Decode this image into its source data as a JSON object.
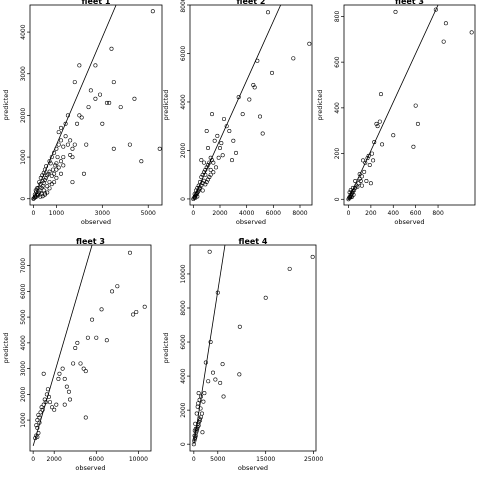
{
  "chart_data": [
    {
      "type": "scatter",
      "title": "fleet 1",
      "xlabel": "observed",
      "ylabel": "predicted",
      "xlim": [
        -150,
        5600
      ],
      "ylim": [
        -150,
        4650
      ],
      "xticks": [
        0,
        1000,
        3000,
        5000
      ],
      "yticks": [
        0,
        1000,
        2000,
        3000,
        4000
      ],
      "line": [
        [
          0,
          0
        ],
        [
          3600,
          4650
        ]
      ],
      "points": [
        [
          0,
          0
        ],
        [
          20,
          10
        ],
        [
          50,
          30
        ],
        [
          80,
          60
        ],
        [
          100,
          40
        ],
        [
          150,
          90
        ],
        [
          180,
          120
        ],
        [
          200,
          80
        ],
        [
          250,
          150
        ],
        [
          300,
          200
        ],
        [
          350,
          260
        ],
        [
          400,
          300
        ],
        [
          60,
          100
        ],
        [
          120,
          160
        ],
        [
          200,
          260
        ],
        [
          300,
          350
        ],
        [
          400,
          420
        ],
        [
          450,
          380
        ],
        [
          500,
          450
        ],
        [
          550,
          500
        ],
        [
          600,
          560
        ],
        [
          650,
          600
        ],
        [
          700,
          650
        ],
        [
          250,
          400
        ],
        [
          320,
          500
        ],
        [
          380,
          560
        ],
        [
          450,
          620
        ],
        [
          500,
          700
        ],
        [
          550,
          780
        ],
        [
          150,
          250
        ],
        [
          100,
          200
        ],
        [
          350,
          120
        ],
        [
          450,
          200
        ],
        [
          500,
          130
        ],
        [
          600,
          300
        ],
        [
          700,
          250
        ],
        [
          800,
          350
        ],
        [
          900,
          400
        ],
        [
          1000,
          500
        ],
        [
          700,
          900
        ],
        [
          800,
          1000
        ],
        [
          900,
          1100
        ],
        [
          750,
          850
        ],
        [
          850,
          700
        ],
        [
          950,
          800
        ],
        [
          1000,
          1200
        ],
        [
          1100,
          1300
        ],
        [
          1200,
          1400
        ],
        [
          1300,
          1250
        ],
        [
          1400,
          1500
        ],
        [
          1050,
          1000
        ],
        [
          1100,
          750
        ],
        [
          1200,
          900
        ],
        [
          1300,
          1000
        ],
        [
          1000,
          850
        ],
        [
          1100,
          1600
        ],
        [
          1200,
          1700
        ],
        [
          1400,
          1800
        ],
        [
          1500,
          1300
        ],
        [
          1600,
          1400
        ],
        [
          1700,
          1200
        ],
        [
          1800,
          1300
        ],
        [
          1900,
          1800
        ],
        [
          2000,
          2000
        ],
        [
          2100,
          1950
        ],
        [
          1500,
          2000
        ],
        [
          1600,
          1050
        ],
        [
          1200,
          600
        ],
        [
          1000,
          700
        ],
        [
          900,
          600
        ],
        [
          800,
          550
        ],
        [
          700,
          400
        ],
        [
          600,
          150
        ],
        [
          500,
          100
        ],
        [
          400,
          60
        ],
        [
          300,
          50
        ],
        [
          2200,
          600
        ],
        [
          2300,
          1300
        ],
        [
          2400,
          2200
        ],
        [
          2500,
          2600
        ],
        [
          2700,
          2400
        ],
        [
          2900,
          2500
        ],
        [
          3000,
          1800
        ],
        [
          3200,
          2300
        ],
        [
          3300,
          2300
        ],
        [
          3400,
          3600
        ],
        [
          3500,
          2800
        ],
        [
          3500,
          1200
        ],
        [
          3800,
          2200
        ],
        [
          4200,
          1300
        ],
        [
          4400,
          2400
        ],
        [
          4700,
          900
        ],
        [
          5200,
          4500
        ],
        [
          5500,
          1200
        ],
        [
          2700,
          3200
        ],
        [
          2000,
          3200
        ],
        [
          1800,
          2800
        ],
        [
          1700,
          1000
        ],
        [
          1300,
          800
        ],
        [
          1700,
          400
        ]
      ]
    },
    {
      "type": "scatter",
      "title": "fleet 2",
      "xlabel": "observed",
      "ylabel": "predicted",
      "xlim": [
        -250,
        8900
      ],
      "ylim": [
        -250,
        8000
      ],
      "xticks": [
        0,
        2000,
        4000,
        6000,
        8000
      ],
      "yticks": [
        0,
        2000,
        4000,
        6000,
        8000
      ],
      "line": [
        [
          0,
          0
        ],
        [
          6550,
          8000
        ]
      ],
      "points": [
        [
          0,
          0
        ],
        [
          50,
          40
        ],
        [
          100,
          80
        ],
        [
          150,
          120
        ],
        [
          200,
          180
        ],
        [
          250,
          200
        ],
        [
          300,
          260
        ],
        [
          350,
          300
        ],
        [
          400,
          350
        ],
        [
          450,
          420
        ],
        [
          500,
          460
        ],
        [
          600,
          550
        ],
        [
          700,
          650
        ],
        [
          800,
          750
        ],
        [
          100,
          200
        ],
        [
          200,
          350
        ],
        [
          300,
          450
        ],
        [
          400,
          550
        ],
        [
          500,
          700
        ],
        [
          600,
          900
        ],
        [
          700,
          1000
        ],
        [
          800,
          1100
        ],
        [
          900,
          1200
        ],
        [
          1000,
          1300
        ],
        [
          1100,
          1400
        ],
        [
          1200,
          1500
        ],
        [
          1300,
          1200
        ],
        [
          1400,
          1600
        ],
        [
          1500,
          1500
        ],
        [
          1000,
          700
        ],
        [
          900,
          600
        ],
        [
          1100,
          800
        ],
        [
          1200,
          900
        ],
        [
          1300,
          1000
        ],
        [
          1500,
          1100
        ],
        [
          1700,
          1300
        ],
        [
          1900,
          1700
        ],
        [
          2000,
          2100
        ],
        [
          2100,
          2300
        ],
        [
          2200,
          1800
        ],
        [
          1600,
          2400
        ],
        [
          1800,
          2600
        ],
        [
          1000,
          2800
        ],
        [
          2300,
          3300
        ],
        [
          2500,
          3000
        ],
        [
          2700,
          2800
        ],
        [
          2900,
          1600
        ],
        [
          3000,
          2400
        ],
        [
          3200,
          1900
        ],
        [
          3400,
          4200
        ],
        [
          3700,
          3500
        ],
        [
          4200,
          4100
        ],
        [
          4500,
          4700
        ],
        [
          4600,
          4600
        ],
        [
          4800,
          5700
        ],
        [
          5000,
          3400
        ],
        [
          5200,
          2700
        ],
        [
          5600,
          7700
        ],
        [
          5900,
          5200
        ],
        [
          7500,
          5800
        ],
        [
          8700,
          6400
        ],
        [
          600,
          1600
        ],
        [
          800,
          1500
        ],
        [
          900,
          1000
        ],
        [
          700,
          350
        ],
        [
          300,
          100
        ],
        [
          150,
          50
        ],
        [
          1400,
          3500
        ],
        [
          1300,
          1700
        ],
        [
          1100,
          2100
        ]
      ]
    },
    {
      "type": "scatter",
      "title": "fleet 3",
      "xlabel": "observed",
      "ylabel": "predicted",
      "xlim": [
        -40,
        1130
      ],
      "ylim": [
        -25,
        850
      ],
      "xticks": [
        0,
        200,
        400,
        600,
        800
      ],
      "yticks": [
        0,
        200,
        400,
        600,
        800
      ],
      "line": [
        [
          0,
          0
        ],
        [
          800,
          850
        ]
      ],
      "points": [
        [
          0,
          0
        ],
        [
          5,
          5
        ],
        [
          10,
          10
        ],
        [
          15,
          8
        ],
        [
          20,
          20
        ],
        [
          25,
          15
        ],
        [
          30,
          25
        ],
        [
          35,
          30
        ],
        [
          40,
          35
        ],
        [
          45,
          20
        ],
        [
          50,
          40
        ],
        [
          60,
          50
        ],
        [
          70,
          60
        ],
        [
          80,
          55
        ],
        [
          90,
          70
        ],
        [
          100,
          90
        ],
        [
          110,
          80
        ],
        [
          120,
          100
        ],
        [
          130,
          170
        ],
        [
          150,
          160
        ],
        [
          170,
          180
        ],
        [
          190,
          150
        ],
        [
          210,
          200
        ],
        [
          230,
          250
        ],
        [
          250,
          330
        ],
        [
          260,
          320
        ],
        [
          280,
          340
        ],
        [
          290,
          460
        ],
        [
          300,
          240
        ],
        [
          400,
          280
        ],
        [
          420,
          820
        ],
        [
          580,
          230
        ],
        [
          600,
          410
        ],
        [
          620,
          330
        ],
        [
          780,
          830
        ],
        [
          850,
          690
        ],
        [
          870,
          770
        ],
        [
          1100,
          730
        ],
        [
          10,
          30
        ],
        [
          20,
          40
        ],
        [
          30,
          10
        ],
        [
          40,
          50
        ],
        [
          100,
          110
        ],
        [
          120,
          60
        ],
        [
          140,
          120
        ],
        [
          160,
          80
        ],
        [
          180,
          190
        ],
        [
          200,
          70
        ],
        [
          220,
          170
        ],
        [
          60,
          80
        ]
      ]
    },
    {
      "type": "scatter",
      "title": "fleet 3",
      "xlabel": "observed",
      "ylabel": "predicted",
      "xlim": [
        -300,
        11200
      ],
      "ylim": [
        -200,
        7800
      ],
      "xticks": [
        0,
        2000,
        6000,
        10000
      ],
      "yticks": [
        1000,
        2000,
        3000,
        4000,
        5000,
        6000,
        7000
      ],
      "line": [
        [
          0,
          0
        ],
        [
          5600,
          7800
        ]
      ],
      "points": [
        [
          200,
          300
        ],
        [
          300,
          400
        ],
        [
          400,
          350
        ],
        [
          500,
          500
        ],
        [
          300,
          800
        ],
        [
          400,
          1000
        ],
        [
          500,
          1200
        ],
        [
          600,
          1100
        ],
        [
          700,
          1300
        ],
        [
          800,
          1500
        ],
        [
          900,
          1400
        ],
        [
          1000,
          1600
        ],
        [
          1100,
          1800
        ],
        [
          1200,
          1700
        ],
        [
          1300,
          2000
        ],
        [
          1400,
          2200
        ],
        [
          1500,
          1900
        ],
        [
          1600,
          1700
        ],
        [
          1800,
          1500
        ],
        [
          2000,
          1400
        ],
        [
          2200,
          1600
        ],
        [
          2500,
          2800
        ],
        [
          2800,
          3000
        ],
        [
          3000,
          2600
        ],
        [
          3200,
          2300
        ],
        [
          3400,
          2100
        ],
        [
          3500,
          1800
        ],
        [
          3800,
          3200
        ],
        [
          4000,
          3800
        ],
        [
          4200,
          4000
        ],
        [
          4500,
          3200
        ],
        [
          4800,
          3000
        ],
        [
          5000,
          2900
        ],
        [
          5200,
          4200
        ],
        [
          5600,
          4900
        ],
        [
          6000,
          4200
        ],
        [
          6500,
          5300
        ],
        [
          7000,
          4100
        ],
        [
          7500,
          6000
        ],
        [
          8000,
          6200
        ],
        [
          9200,
          7500
        ],
        [
          9500,
          5100
        ],
        [
          9800,
          5200
        ],
        [
          10600,
          5400
        ],
        [
          5000,
          1100
        ],
        [
          3000,
          1600
        ],
        [
          2400,
          2600
        ],
        [
          1000,
          2800
        ],
        [
          600,
          900
        ],
        [
          400,
          700
        ]
      ]
    },
    {
      "type": "scatter",
      "title": "fleet 4",
      "xlabel": "observed",
      "ylabel": "predicted",
      "xlim": [
        -800,
        25500
      ],
      "ylim": [
        -400,
        11700
      ],
      "xticks": [
        0,
        5000,
        15000,
        25000
      ],
      "yticks": [
        0,
        2000,
        4000,
        6000,
        8000,
        10000
      ],
      "line": [
        [
          0,
          0
        ],
        [
          6500,
          11700
        ]
      ],
      "points": [
        [
          0,
          0
        ],
        [
          100,
          200
        ],
        [
          200,
          300
        ],
        [
          300,
          400
        ],
        [
          400,
          500
        ],
        [
          500,
          700
        ],
        [
          600,
          800
        ],
        [
          700,
          900
        ],
        [
          800,
          1000
        ],
        [
          900,
          1200
        ],
        [
          1000,
          1100
        ],
        [
          1100,
          1300
        ],
        [
          1200,
          1500
        ],
        [
          1300,
          1400
        ],
        [
          1500,
          1600
        ],
        [
          1700,
          1800
        ],
        [
          1000,
          3000
        ],
        [
          1500,
          2800
        ],
        [
          2000,
          2500
        ],
        [
          2200,
          3000
        ],
        [
          2500,
          4800
        ],
        [
          3000,
          3700
        ],
        [
          3300,
          11300
        ],
        [
          3500,
          6000
        ],
        [
          4000,
          4200
        ],
        [
          4500,
          3800
        ],
        [
          5000,
          8900
        ],
        [
          5500,
          3600
        ],
        [
          6000,
          4700
        ],
        [
          6200,
          2800
        ],
        [
          9500,
          4100
        ],
        [
          9600,
          6900
        ],
        [
          15000,
          8600
        ],
        [
          20000,
          10300
        ],
        [
          24800,
          11000
        ],
        [
          800,
          2200
        ],
        [
          600,
          1800
        ],
        [
          400,
          900
        ],
        [
          300,
          1200
        ],
        [
          200,
          800
        ],
        [
          150,
          500
        ],
        [
          900,
          2400
        ],
        [
          1200,
          2600
        ],
        [
          1400,
          2100
        ],
        [
          1800,
          700
        ]
      ]
    }
  ]
}
